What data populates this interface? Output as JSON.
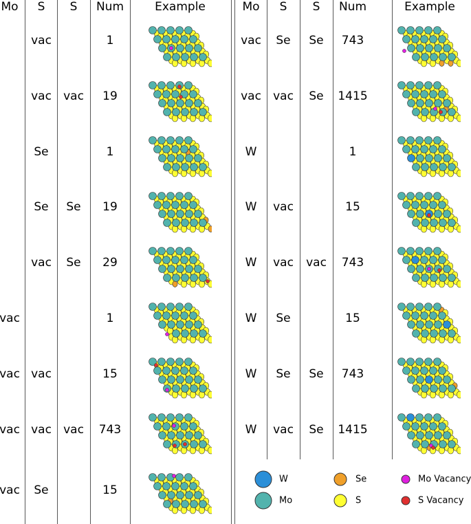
{
  "headers": {
    "left": [
      "Mo",
      "S",
      "S",
      "Num",
      "Example"
    ],
    "right": [
      "Mo",
      "S",
      "S",
      "Num",
      "Example"
    ]
  },
  "left_rows": [
    {
      "mo": "",
      "s1": "vac",
      "s2": "",
      "num": "1"
    },
    {
      "mo": "",
      "s1": "vac",
      "s2": "vac",
      "num": "19"
    },
    {
      "mo": "",
      "s1": "Se",
      "s2": "",
      "num": "1"
    },
    {
      "mo": "",
      "s1": "Se",
      "s2": "Se",
      "num": "19"
    },
    {
      "mo": "",
      "s1": "vac",
      "s2": "Se",
      "num": "29"
    },
    {
      "mo": "vac",
      "s1": "",
      "s2": "",
      "num": "1"
    },
    {
      "mo": "vac",
      "s1": "vac",
      "s2": "",
      "num": "15"
    },
    {
      "mo": "vac",
      "s1": "vac",
      "s2": "vac",
      "num": "743"
    },
    {
      "mo": "vac",
      "s1": "Se",
      "s2": "",
      "num": "15"
    }
  ],
  "right_rows": [
    {
      "mo": "vac",
      "s1": "Se",
      "s2": "Se",
      "num": "743"
    },
    {
      "mo": "vac",
      "s1": "vac",
      "s2": "Se",
      "num": "1415"
    },
    {
      "mo": "W",
      "s1": "",
      "s2": "",
      "num": "1"
    },
    {
      "mo": "W",
      "s1": "vac",
      "s2": "",
      "num": "15"
    },
    {
      "mo": "W",
      "s1": "vac",
      "s2": "vac",
      "num": "743"
    },
    {
      "mo": "W",
      "s1": "Se",
      "s2": "",
      "num": "15"
    },
    {
      "mo": "W",
      "s1": "Se",
      "s2": "Se",
      "num": "743"
    },
    {
      "mo": "W",
      "s1": "vac",
      "s2": "Se",
      "num": "1415"
    }
  ],
  "legend": [
    {
      "label": "W",
      "color": "#2b8fd8",
      "kind": "large"
    },
    {
      "label": "Mo",
      "color": "#52b3ad",
      "kind": "large"
    },
    {
      "label": "Se",
      "color": "#f0a02a",
      "kind": "medium"
    },
    {
      "label": "S",
      "color": "#ffff33",
      "kind": "medium"
    },
    {
      "label": "Mo Vacancy",
      "color": "#e020e0",
      "kind": "small"
    },
    {
      "label": "S Vacancy",
      "color": "#e03030",
      "kind": "small"
    }
  ],
  "colors": {
    "mo": "#52b3ad",
    "s": "#ffff33",
    "w": "#2b8fd8",
    "se": "#f0a02a",
    "mo_vac": "#e020e0",
    "s_vac": "#e03030",
    "stroke": "#333333",
    "rule": "#555555"
  }
}
